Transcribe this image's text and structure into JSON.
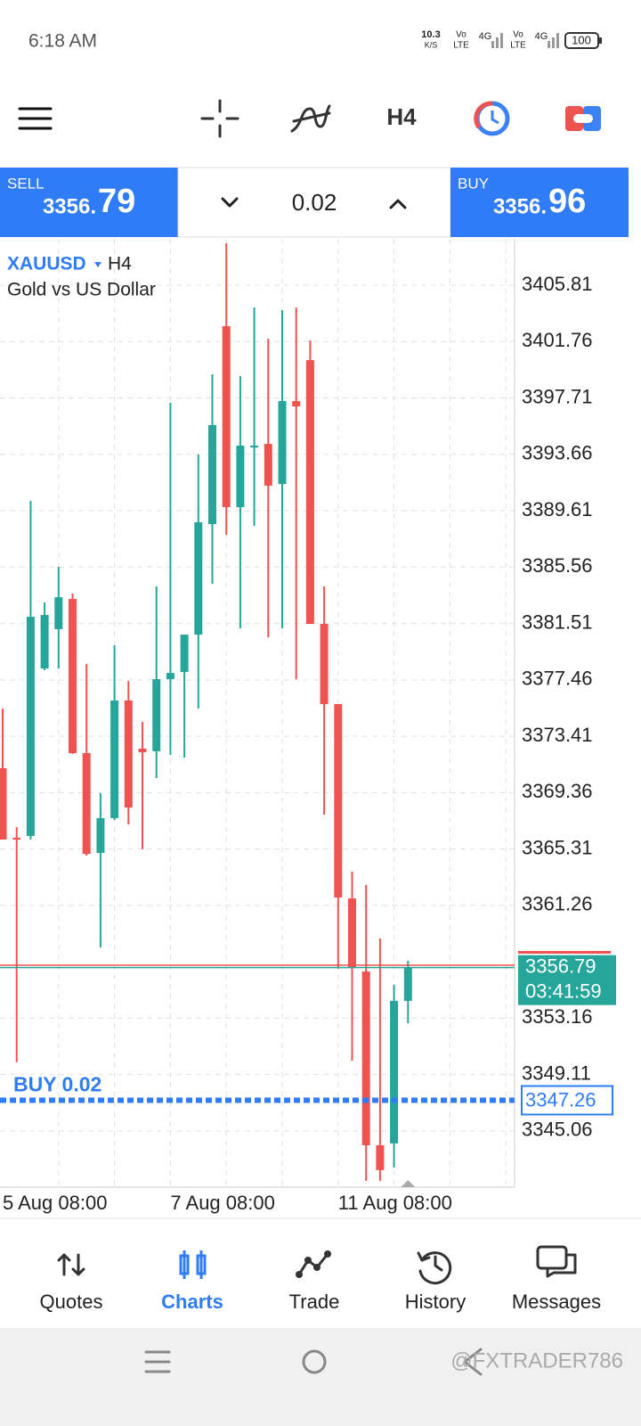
{
  "status_bar": {
    "time": "6:18 AM",
    "speed": "10.3",
    "speed_unit": "K/S",
    "volte": "Vo",
    "lte": "LTE",
    "net": "4G",
    "battery": "100"
  },
  "toolbar": {
    "timeframe": "H4"
  },
  "trade_panel": {
    "sell_label": "SELL",
    "sell_price_small": "3356.",
    "sell_price_big": "79",
    "lot": "0.02",
    "buy_label": "BUY",
    "buy_price_small": "3356.",
    "buy_price_big": "96"
  },
  "chart": {
    "type": "candlestick",
    "symbol": "XAUUSD",
    "description": "Gold vs US Dollar",
    "categories": [
      "5 Aug 08:00",
      null,
      null,
      null,
      null,
      null,
      null,
      null,
      null,
      null,
      null,
      null,
      "7 Aug 08:00",
      null,
      null,
      null,
      null,
      null,
      null,
      null,
      null,
      null,
      null,
      null,
      "11 Aug 08:00",
      null,
      null,
      null,
      null,
      null
    ],
    "open": [
      3371.11,
      3366.12,
      3366.25,
      3378.28,
      3381.1,
      3383.27,
      3372.2,
      3365.03,
      3367.53,
      3375.98,
      3372.52,
      3372.33,
      3377.51,
      3378.03,
      3380.71,
      3388.65,
      3402.87,
      3389.87,
      3394.16,
      3394.41,
      3391.53,
      3397.49,
      3400.43,
      3381.48,
      3375.72,
      3361.76,
      3356.51,
      3344.03,
      3344.16,
      3354.4
    ],
    "high": [
      3375.4,
      3366.89,
      3390.32,
      3383.02,
      3385.58,
      3383.66,
      3378.6,
      3369.32,
      3379.95,
      3377.38,
      3374.44,
      3384.17,
      3397.36,
      3380.71,
      3393.65,
      3399.41,
      3408.82,
      3399.28,
      3404.21,
      3401.97,
      3404.02,
      3404.21,
      3401.84,
      3384.17,
      3375.72,
      3363.68,
      3362.72,
      3358.88,
      3355.55,
      3357.28
    ],
    "low": [
      3365.99,
      3349.98,
      3365.99,
      3378.15,
      3378.28,
      3372.14,
      3364.84,
      3358.24,
      3367.4,
      3367.08,
      3365.29,
      3370.41,
      3372.07,
      3371.88,
      3375.4,
      3384.36,
      3387.88,
      3381.16,
      3388.52,
      3380.52,
      3381.16,
      3377.51,
      3381.48,
      3367.78,
      3356.71,
      3350.11,
      3341.47,
      3341.47,
      3342.43,
      3352.8
    ],
    "close": [
      3365.99,
      3365.99,
      3381.99,
      3382.12,
      3383.4,
      3372.2,
      3364.96,
      3367.53,
      3375.98,
      3368.29,
      3372.26,
      3377.51,
      3377.96,
      3380.71,
      3388.78,
      3395.76,
      3389.87,
      3394.29,
      3394.29,
      3391.41,
      3397.49,
      3397.1,
      3381.48,
      3375.72,
      3361.83,
      3356.77,
      3344.03,
      3342.24,
      3354.4,
      3356.79
    ],
    "up_color": "#26a69a",
    "down_color": "#ef5350",
    "ylim": [
      3341.02,
      3409.14
    ],
    "yticks": [
      3405.81,
      3401.76,
      3397.71,
      3393.66,
      3389.61,
      3385.56,
      3381.51,
      3377.46,
      3373.41,
      3369.36,
      3365.31,
      3361.26,
      3353.16,
      3349.11,
      3345.06
    ],
    "grid": true,
    "bid": 3356.79,
    "ask": 3356.96,
    "countdown": "03:41:59",
    "order": {
      "label": "BUY 0.02",
      "price": 3347.26,
      "color": "#2f7cf6"
    }
  },
  "nav": {
    "items": [
      "Quotes",
      "Charts",
      "Trade",
      "History",
      "Messages"
    ],
    "active": 1
  },
  "watermark": "@FXTRADER786"
}
